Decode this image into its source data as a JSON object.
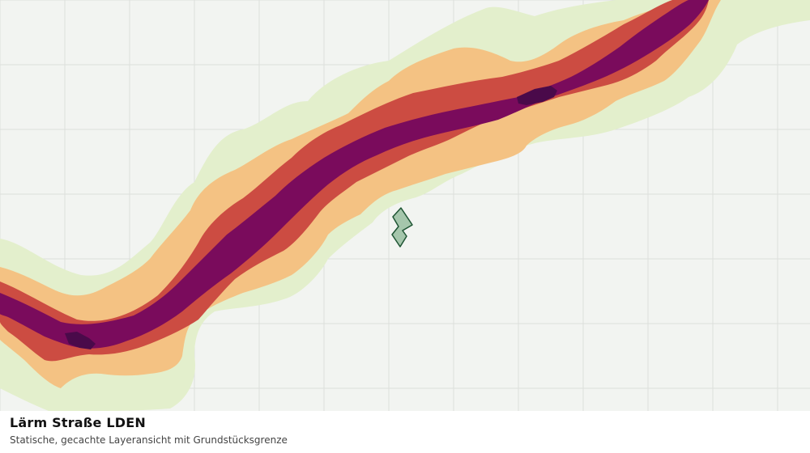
{
  "caption": {
    "title": "Lärm Straße LDEN",
    "subtitle": "Statische, gecachte Layeransicht mit Grundstücksgrenze"
  },
  "colors": {
    "background": "#f2f4f1",
    "grid": "#dcdfdc",
    "noise_lowest": "#e3efcc",
    "noise_low": "#f4c283",
    "noise_mid": "#cc4c42",
    "noise_high": "#7a0b5c",
    "noise_highest": "#4a0a4a",
    "parcel_fill": "#a5c6ac",
    "parcel_stroke": "#1e5433"
  },
  "layers": [
    "noise-band-lowest",
    "noise-band-low",
    "noise-band-mid",
    "noise-band-high",
    "noise-band-highest",
    "parcel-boundary"
  ]
}
